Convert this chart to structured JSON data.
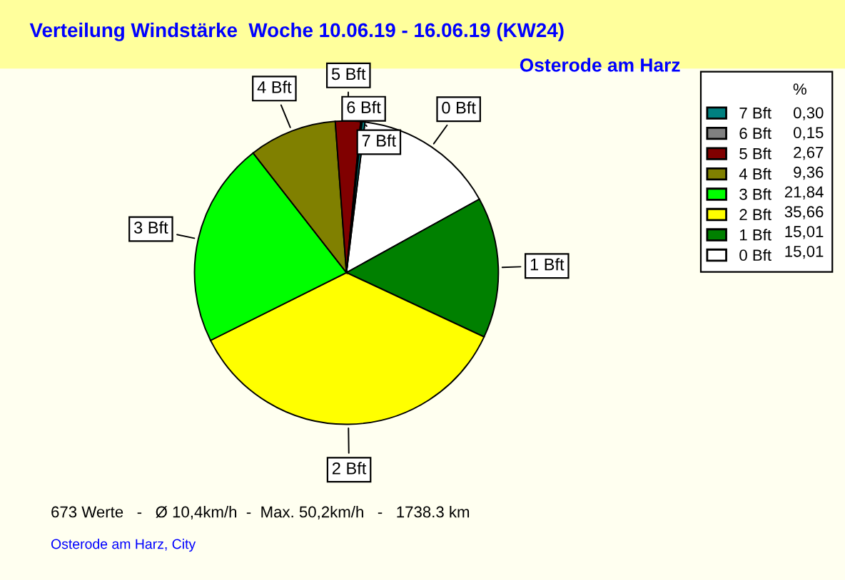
{
  "chart_data": {
    "type": "pie",
    "title": "Verteilung Windstärke  Woche 10.06.19 - 16.06.19 (KW24)",
    "subtitle": "Osterode am Harz",
    "categories": [
      "0 Bft",
      "1 Bft",
      "2 Bft",
      "3 Bft",
      "4 Bft",
      "5 Bft",
      "6 Bft",
      "7 Bft"
    ],
    "values": [
      15.01,
      15.01,
      35.66,
      21.84,
      9.36,
      2.67,
      0.15,
      0.3
    ],
    "value_labels": [
      "15,01",
      "15,01",
      "35,66",
      "21,84",
      "9,36",
      "2,67",
      "0,15",
      "0,30"
    ],
    "colors": [
      "#ffffff",
      "#008000",
      "#ffff00",
      "#00ff00",
      "#808000",
      "#800000",
      "#808080",
      "#008080"
    ],
    "legend": "right",
    "legend_title": "%",
    "annotations": [
      "673 Werte   -   Ø 10,4km/h  -  Max. 50,2km/h   -   1738.3 km",
      "Osterode am Harz, City"
    ]
  }
}
